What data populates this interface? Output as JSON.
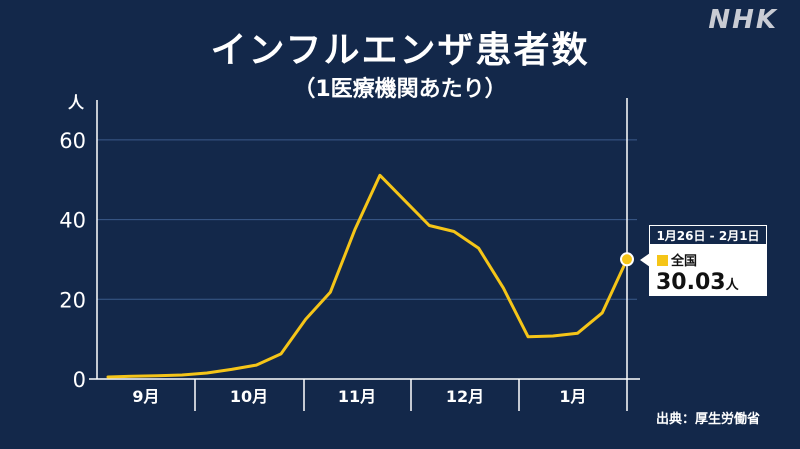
{
  "header": {
    "title": "インフルエンザ患者数",
    "subtitle": "（1医療機関あたり）",
    "logo_text": "NHK"
  },
  "source": "出典：厚生労働省",
  "tooltip": {
    "period": "1月26日 - 2月1日",
    "series_label": "全国",
    "value": "30.03",
    "unit": "人"
  },
  "colors": {
    "background": "#13284a",
    "line": "#f5c518",
    "grid": "#3b5a8a",
    "text": "#ffffff"
  },
  "chart_data": {
    "type": "line",
    "title": "インフルエンザ患者数",
    "subtitle": "（1医療機関あたり）",
    "ylabel": "人",
    "ylim": [
      0,
      70
    ],
    "yticks": [
      0,
      20,
      40,
      60
    ],
    "month_labels": [
      "9月",
      "10月",
      "11月",
      "12月",
      "1月"
    ],
    "grid": true,
    "series": [
      {
        "name": "全国",
        "values": [
          0.5,
          0.7,
          0.8,
          1.0,
          1.5,
          2.4,
          3.5,
          6.3,
          15,
          21.8,
          37.6,
          51.1,
          44.8,
          38.5,
          37,
          32.8,
          22.8,
          10.6,
          10.8,
          11.5,
          16.6,
          30.03
        ]
      }
    ],
    "highlight": {
      "period": "1月26日 - 2月1日",
      "value": 30.03
    }
  }
}
